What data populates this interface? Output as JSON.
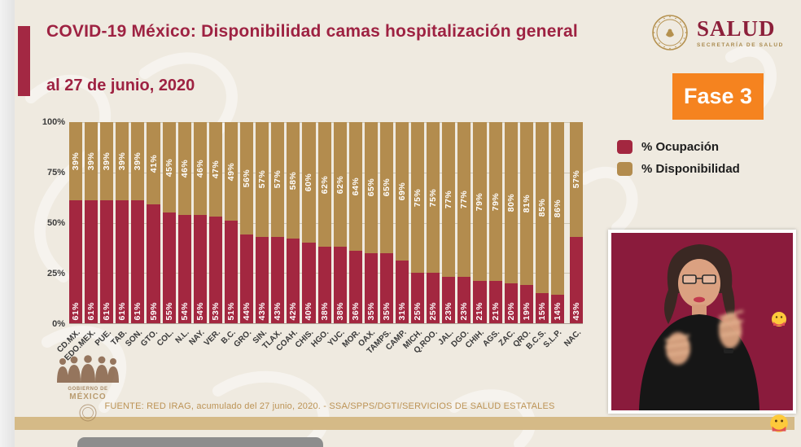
{
  "header": {
    "title": "COVID-19 México: Disponibilidad camas hospitalización general",
    "subtitle": "al 27 de junio, 2020",
    "phase_badge": "Fase 3",
    "phase_color": "#f5831f",
    "logo": {
      "name": "SALUD",
      "sub": "SECRETARÍA DE SALUD"
    }
  },
  "legend": {
    "items": [
      {
        "label": "% Ocupación",
        "color": "#a32740"
      },
      {
        "label": "% Disponibilidad",
        "color": "#b38c4e"
      }
    ]
  },
  "chart_data": {
    "type": "bar",
    "stacked": true,
    "title": "COVID-19 México: Disponibilidad camas hospitalización general al 27 de junio, 2020",
    "xlabel": "",
    "ylabel": "",
    "ylim": [
      0,
      100
    ],
    "y_ticks": [
      "100%",
      "75%",
      "50%",
      "25%",
      "0%"
    ],
    "grid": true,
    "legend_position": "right",
    "categories": [
      "CD.MX.",
      "EDO.MEX.",
      "PUE.",
      "TAB.",
      "SON.",
      "GTO.",
      "COL.",
      "N.L.",
      "NAY.",
      "VER.",
      "B.C.",
      "GRO.",
      "SIN.",
      "TLAX.",
      "COAH.",
      "CHIS.",
      "HGO.",
      "YUC.",
      "MOR.",
      "OAX.",
      "TAMPS.",
      "CAMP.",
      "MICH.",
      "Q.ROO.",
      "JAL.",
      "DGO.",
      "CHIH.",
      "AGS.",
      "ZAC.",
      "QRO.",
      "B.C.S.",
      "S.L.P.",
      "NAC."
    ],
    "series": [
      {
        "name": "% Ocupación",
        "color": "#a32740",
        "values": [
          61,
          61,
          61,
          61,
          61,
          59,
          55,
          54,
          54,
          53,
          51,
          44,
          43,
          43,
          42,
          40,
          38,
          38,
          36,
          35,
          35,
          31,
          25,
          25,
          23,
          23,
          21,
          21,
          20,
          19,
          15,
          14,
          43
        ]
      },
      {
        "name": "% Disponibilidad",
        "color": "#b38c4e",
        "values": [
          39,
          39,
          39,
          39,
          39,
          41,
          45,
          46,
          46,
          47,
          49,
          56,
          57,
          57,
          58,
          60,
          62,
          62,
          64,
          65,
          65,
          69,
          75,
          75,
          77,
          77,
          79,
          79,
          80,
          81,
          85,
          86,
          57
        ]
      }
    ]
  },
  "footer": {
    "source": "FUENTE: RED IRAG, acumulado del 27 junio, 2020. -  SSA/SPPS/DGTI/SERVICIOS DE SALUD ESTATALES"
  },
  "watermark": {
    "line1": "GOBIERNO DE",
    "line2": "MÉXICO"
  },
  "overlays": {
    "emoji": "🤭"
  }
}
